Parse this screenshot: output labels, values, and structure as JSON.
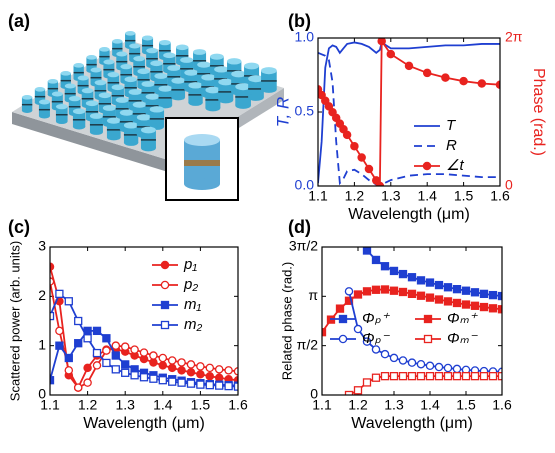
{
  "panel_a": {
    "label": "(a)"
  },
  "chart_data": [
    {
      "type": "line",
      "label": "(b)",
      "xlabel": "Wavelength (μm)",
      "ylabel": "T, R",
      "y2label": "Phase (rad.)",
      "ylabel_color": "#1f3fd1",
      "y2label_color": "#e8231f",
      "legend": "lower right",
      "legend_columns": 1,
      "xlim": [
        1.1,
        1.6
      ],
      "xticks": [
        1.1,
        1.2,
        1.3,
        1.4,
        1.5,
        1.6
      ],
      "ylim": [
        0,
        1
      ],
      "yticks": [
        {
          "value": 0,
          "label": "0.0"
        },
        {
          "value": 0.5,
          "label": "0.5"
        },
        {
          "value": 1,
          "label": "1.0"
        }
      ],
      "y2lim": [
        0,
        6.283
      ],
      "y2ticks": [
        0,
        {
          "value": 6.283,
          "label": "2π"
        }
      ],
      "x": [
        1.1,
        1.11,
        1.12,
        1.13,
        1.14,
        1.15,
        1.16,
        1.17,
        1.18,
        1.2,
        1.22,
        1.24,
        1.26,
        1.27,
        1.275,
        1.3,
        1.35,
        1.4,
        1.45,
        1.5,
        1.55,
        1.6
      ],
      "series": [
        {
          "name": "T",
          "color": "#1f3fd1",
          "marker": "none",
          "linestyle": "solid",
          "values": [
            0.02,
            0.3,
            0.8,
            0.93,
            0.95,
            0.94,
            0.9,
            0.93,
            0.96,
            0.97,
            0.96,
            0.94,
            0.9,
            0.92,
            0.97,
            0.93,
            0.93,
            0.94,
            0.95,
            0.95,
            0.96,
            0.96
          ]
        },
        {
          "name": "R",
          "color": "#1f3fd1",
          "marker": "none",
          "linestyle": "dashed",
          "values": [
            0.9,
            0.89,
            0.88,
            0.85,
            0.7,
            0.3,
            0.02,
            0.05,
            0.1,
            0.11,
            0.08,
            0.04,
            0.01,
            0.0,
            0.01,
            0.04,
            0.07,
            0.08,
            0.08,
            0.07,
            0.06,
            0.06
          ]
        },
        {
          "name": "∠t",
          "color": "#e8231f",
          "marker": "circle",
          "filled": true,
          "linestyle": "solid",
          "axis": "y2",
          "values": [
            4.1,
            3.86,
            3.62,
            3.38,
            3.13,
            2.89,
            2.65,
            2.41,
            2.17,
            1.69,
            1.21,
            0.72,
            0.24,
            0.0,
            6.15,
            5.6,
            5.1,
            4.8,
            4.6,
            4.45,
            4.35,
            4.3
          ]
        }
      ]
    },
    {
      "type": "line",
      "label": "(c)",
      "xlabel": "Wavelength (μm)",
      "ylabel": "Scattered power (arb. units)",
      "legend": "upper right",
      "legend_columns": 1,
      "xlim": [
        1.1,
        1.6
      ],
      "xticks": [
        1.1,
        1.2,
        1.3,
        1.4,
        1.5,
        1.6
      ],
      "ylim": [
        0,
        3
      ],
      "yticks": [
        0,
        1,
        2,
        3
      ],
      "x": [
        1.1,
        1.125,
        1.15,
        1.175,
        1.2,
        1.225,
        1.25,
        1.275,
        1.3,
        1.325,
        1.35,
        1.375,
        1.4,
        1.425,
        1.45,
        1.475,
        1.5,
        1.525,
        1.55,
        1.575,
        1.6
      ],
      "series": [
        {
          "name": "p₁",
          "color": "#e8231f",
          "marker": "circle",
          "filled": true,
          "linestyle": "solid",
          "values": [
            2.6,
            1.9,
            0.4,
            0.15,
            0.55,
            0.8,
            0.92,
            0.93,
            0.88,
            0.8,
            0.73,
            0.66,
            0.6,
            0.55,
            0.5,
            0.46,
            0.42,
            0.38,
            0.35,
            0.32,
            0.3
          ]
        },
        {
          "name": "p₂",
          "color": "#e8231f",
          "marker": "circle",
          "filled": false,
          "linestyle": "solid",
          "values": [
            2.3,
            1.3,
            0.5,
            0.15,
            0.25,
            0.6,
            0.9,
            1.0,
            0.98,
            0.92,
            0.86,
            0.8,
            0.75,
            0.7,
            0.66,
            0.62,
            0.58,
            0.55,
            0.52,
            0.5,
            0.48
          ]
        },
        {
          "name": "m₁",
          "color": "#1f3fd1",
          "marker": "square",
          "filled": true,
          "linestyle": "solid",
          "values": [
            0.3,
            1.0,
            0.75,
            1.05,
            1.3,
            1.3,
            1.15,
            0.8,
            0.62,
            0.52,
            0.45,
            0.4,
            0.35,
            0.32,
            0.29,
            0.26,
            0.24,
            0.22,
            0.21,
            0.2,
            0.19
          ]
        },
        {
          "name": "m₂",
          "color": "#1f3fd1",
          "marker": "square",
          "filled": false,
          "linestyle": "solid",
          "values": [
            1.6,
            2.05,
            1.9,
            1.5,
            1.15,
            0.85,
            0.65,
            0.52,
            0.45,
            0.4,
            0.36,
            0.33,
            0.3,
            0.27,
            0.25,
            0.23,
            0.21,
            0.2,
            0.19,
            0.18,
            0.17
          ]
        }
      ]
    },
    {
      "type": "line",
      "label": "(d)",
      "xlabel": "Wavelength (μm)",
      "ylabel": "Related phase (rad.)",
      "legend": "center right",
      "legend_columns": 2,
      "xlim": [
        1.1,
        1.6
      ],
      "xticks": [
        1.1,
        1.2,
        1.3,
        1.4,
        1.5,
        1.6
      ],
      "ylim": [
        0,
        4.712
      ],
      "yticks": [
        0,
        {
          "value": 1.571,
          "label": "π/2"
        },
        {
          "value": 3.142,
          "label": "π"
        },
        {
          "value": 4.712,
          "label": "3π/2"
        }
      ],
      "x": [
        1.1,
        1.125,
        1.15,
        1.175,
        1.2,
        1.225,
        1.25,
        1.275,
        1.3,
        1.325,
        1.35,
        1.375,
        1.4,
        1.425,
        1.45,
        1.475,
        1.5,
        1.525,
        1.55,
        1.575,
        1.6
      ],
      "series": [
        {
          "name": "Φₚ⁺",
          "color": "#1f3fd1",
          "marker": "square",
          "filled": true,
          "linestyle": "solid",
          "values": [
            null,
            null,
            null,
            null,
            null,
            4.6,
            4.3,
            4.1,
            3.95,
            3.85,
            3.75,
            3.65,
            3.58,
            3.5,
            3.43,
            3.37,
            3.32,
            3.27,
            3.22,
            3.18,
            3.15
          ]
        },
        {
          "name": "Φₘ⁺",
          "color": "#e8231f",
          "marker": "square",
          "filled": true,
          "linestyle": "solid",
          "values": [
            2.0,
            2.4,
            2.75,
            3.0,
            3.2,
            3.3,
            3.35,
            3.36,
            3.32,
            3.28,
            3.22,
            3.16,
            3.1,
            3.04,
            2.98,
            2.93,
            2.88,
            2.84,
            2.8,
            2.76,
            2.73
          ]
        },
        {
          "name": "Φₚ⁻",
          "color": "#1f3fd1",
          "marker": "circle",
          "filled": false,
          "linestyle": "solid",
          "values": [
            null,
            null,
            null,
            3.3,
            2.1,
            1.7,
            1.45,
            1.3,
            1.18,
            1.1,
            1.03,
            0.98,
            0.93,
            0.89,
            0.86,
            0.83,
            0.8,
            0.78,
            0.76,
            0.75,
            0.74
          ]
        },
        {
          "name": "Φₘ⁻",
          "color": "#e8231f",
          "marker": "square",
          "filled": false,
          "linestyle": "solid",
          "values": [
            null,
            null,
            null,
            0.0,
            0.15,
            0.4,
            0.55,
            0.6,
            0.6,
            0.6,
            0.6,
            0.6,
            0.6,
            0.6,
            0.6,
            0.6,
            0.6,
            0.6,
            0.6,
            0.6,
            0.6
          ]
        }
      ]
    }
  ]
}
